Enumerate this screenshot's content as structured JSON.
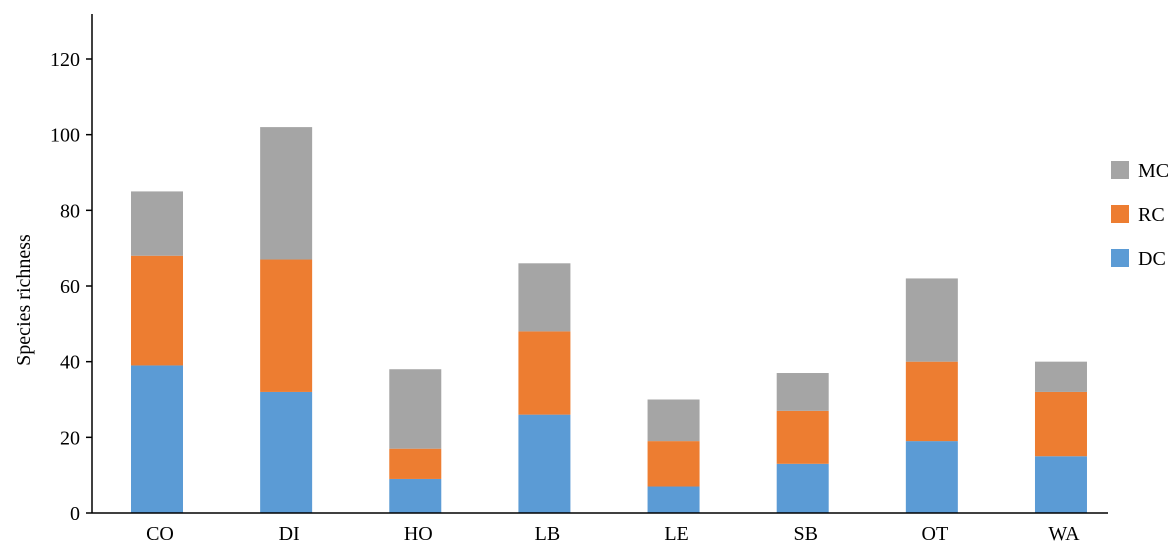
{
  "chart_data": {
    "type": "bar",
    "stacked": true,
    "title": "",
    "xlabel": "",
    "ylabel": "Species richness",
    "ylim": [
      0,
      130
    ],
    "yticks": [
      0,
      20,
      40,
      60,
      80,
      100,
      120
    ],
    "grid": false,
    "legend_position": "right",
    "categories": [
      "CO",
      "DI",
      "HO",
      "LB",
      "LE",
      "SB",
      "OT",
      "WA"
    ],
    "series": [
      {
        "name": "DC",
        "color": "#5b9bd5",
        "values": [
          39,
          32,
          9,
          26,
          7,
          13,
          19,
          15
        ]
      },
      {
        "name": "RC",
        "color": "#ed7d31",
        "values": [
          29,
          35,
          8,
          22,
          12,
          14,
          21,
          17
        ]
      },
      {
        "name": "MC",
        "color": "#a5a5a5",
        "values": [
          17,
          35,
          21,
          18,
          11,
          10,
          22,
          8
        ]
      }
    ],
    "legend_order": [
      "MC",
      "RC",
      "DC"
    ]
  }
}
